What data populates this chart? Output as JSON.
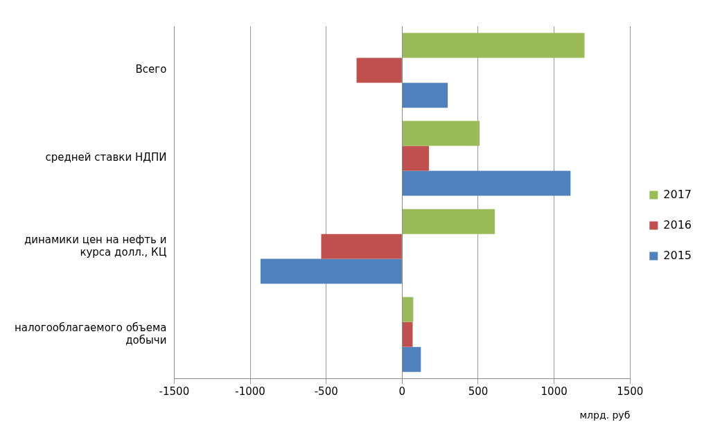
{
  "chart_data": {
    "type": "bar",
    "orientation": "horizontal",
    "categories": [
      "Всего",
      "средней ставки НДПИ",
      "динамики цен на нефть и курса долл., КЦ",
      "налогооблагаемого объема добычи"
    ],
    "series": [
      {
        "name": "2017",
        "color": "#9bbb59",
        "values": [
          1200,
          510,
          610,
          73
        ]
      },
      {
        "name": "2016",
        "color": "#c0504d",
        "values": [
          -300,
          176,
          -533,
          69
        ]
      },
      {
        "name": "2015",
        "color": "#4f81bd",
        "values": [
          300,
          1108,
          -932,
          123
        ]
      }
    ],
    "xlim": [
      -1500,
      1500
    ],
    "xticks": [
      -1500,
      -1000,
      -500,
      0,
      500,
      1000,
      1500
    ],
    "xlabel": "млрд. руб",
    "grid": "x",
    "legend": "right"
  }
}
